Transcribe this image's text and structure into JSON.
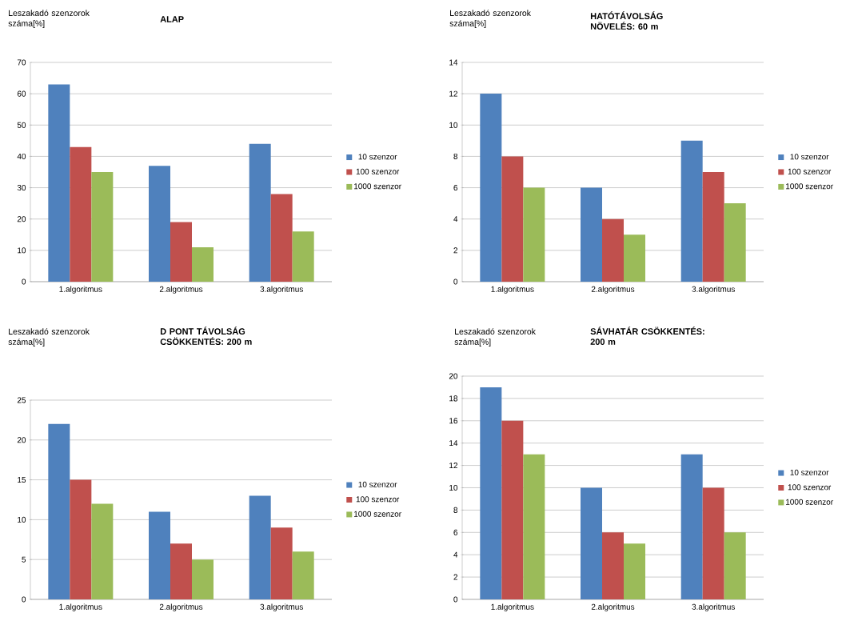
{
  "chart_data": [
    {
      "type": "bar",
      "title": "ALAP",
      "ylabel": "Leszakadó szenzorok száma[%]",
      "categories": [
        "1.algoritmus",
        "2.algoritmus",
        "3.algoritmus"
      ],
      "series": [
        {
          "name": "10 szenzor",
          "color": "#4f81bd",
          "values": [
            63,
            37,
            44
          ]
        },
        {
          "name": "100 szenzor",
          "color": "#c0504d",
          "values": [
            43,
            19,
            28
          ]
        },
        {
          "name": "1000 szenzor",
          "color": "#9bbb59",
          "values": [
            35,
            11,
            16
          ]
        }
      ],
      "ylim": [
        0,
        70
      ],
      "yticks": [
        0,
        10,
        20,
        30,
        40,
        50,
        60,
        70
      ],
      "grid": "y",
      "legend": "right"
    },
    {
      "type": "bar",
      "title": "HATÓTÁVOLSÁG NÖVELÉS: 60 m",
      "ylabel": "Leszakadó szenzorok száma[%]",
      "categories": [
        "1.algoritmus",
        "2.algoritmus",
        "3.algoritmus"
      ],
      "series": [
        {
          "name": "10 szenzor",
          "color": "#4f81bd",
          "values": [
            12,
            6,
            9
          ]
        },
        {
          "name": "100 szenzor",
          "color": "#c0504d",
          "values": [
            8,
            4,
            7
          ]
        },
        {
          "name": "1000 szenzor",
          "color": "#9bbb59",
          "values": [
            6,
            3,
            5
          ]
        }
      ],
      "ylim": [
        0,
        14
      ],
      "yticks": [
        0,
        2,
        4,
        6,
        8,
        10,
        12,
        14
      ],
      "grid": "y",
      "legend": "right"
    },
    {
      "type": "bar",
      "title": "D PONT TÁVOLSÁG CSÖKKENTÉS: 200 m",
      "ylabel": "Leszakadó szenzorok száma[%]",
      "categories": [
        "1.algoritmus",
        "2.algoritmus",
        "3.algoritmus"
      ],
      "series": [
        {
          "name": "10 szenzor",
          "color": "#4f81bd",
          "values": [
            22,
            11,
            13
          ]
        },
        {
          "name": "100 szenzor",
          "color": "#c0504d",
          "values": [
            15,
            7,
            9
          ]
        },
        {
          "name": "1000 szenzor",
          "color": "#9bbb59",
          "values": [
            12,
            5,
            6
          ]
        }
      ],
      "ylim": [
        0,
        25
      ],
      "yticks": [
        0,
        5,
        10,
        15,
        20,
        25
      ],
      "grid": "y",
      "legend": "right"
    },
    {
      "type": "bar",
      "title": "SÁVHATÁR CSÖKKENTÉS: 200 m",
      "ylabel": "Leszakadó szenzorok száma[%]",
      "categories": [
        "1.algoritmus",
        "2.algoritmus",
        "3.algoritmus"
      ],
      "series": [
        {
          "name": "10 szenzor",
          "color": "#4f81bd",
          "values": [
            19,
            10,
            13
          ]
        },
        {
          "name": "100 szenzor",
          "color": "#c0504d",
          "values": [
            16,
            6,
            10
          ]
        },
        {
          "name": "1000 szenzor",
          "color": "#9bbb59",
          "values": [
            13,
            5,
            6
          ]
        }
      ],
      "ylim": [
        0,
        20
      ],
      "yticks": [
        0,
        2,
        4,
        6,
        8,
        10,
        12,
        14,
        16,
        18,
        20
      ],
      "grid": "y",
      "legend": "right"
    }
  ]
}
